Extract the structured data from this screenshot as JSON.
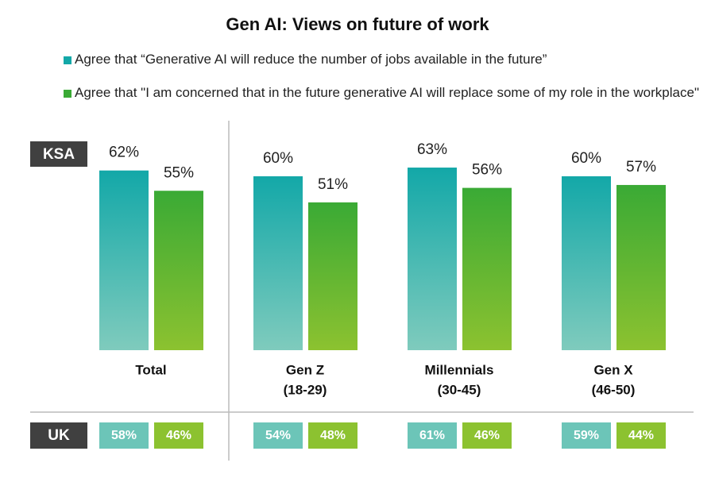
{
  "chart_data": {
    "type": "bar",
    "title": "Gen AI: Views on future of work",
    "regions": [
      "KSA",
      "UK"
    ],
    "categories": [
      [
        "Total"
      ],
      [
        "Gen Z",
        "(18-29)"
      ],
      [
        "Millennials",
        "(30-45)"
      ],
      [
        "Gen X",
        "(46-50)"
      ]
    ],
    "series": [
      {
        "name": "Agree that “Generative AI will reduce the number of jobs available in the future”",
        "color": "#13a8a8",
        "values": [
          62,
          60,
          63,
          60
        ],
        "value_labels": [
          "62%",
          "60%",
          "63%",
          "60%"
        ],
        "uk_values": [
          58,
          54,
          61,
          59
        ],
        "uk_value_labels": [
          "58%",
          "54%",
          "61%",
          "59%"
        ]
      },
      {
        "name": "Agree that \"I am concerned that in the future generative AI will replace some of my role in the workplace\"",
        "color": "#3aaa35",
        "values": [
          55,
          51,
          56,
          57
        ],
        "value_labels": [
          "55%",
          "51%",
          "56%",
          "57%"
        ],
        "uk_values": [
          46,
          48,
          46,
          44
        ],
        "uk_value_labels": [
          "46%",
          "48%",
          "46%",
          "44%"
        ]
      }
    ],
    "ylim": [
      0,
      100
    ]
  }
}
